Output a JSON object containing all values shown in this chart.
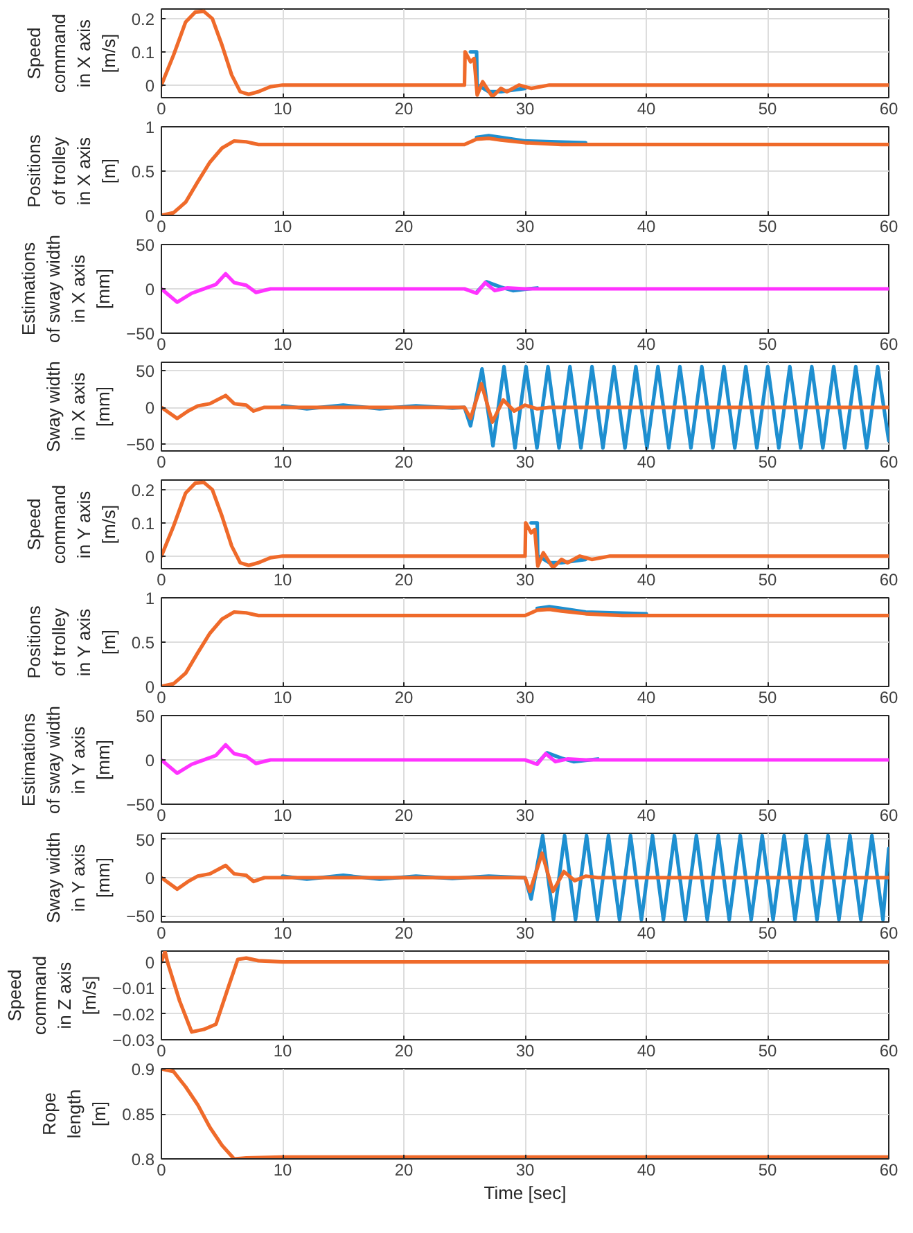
{
  "chart_data": [
    {
      "type": "line",
      "ylabel": "Speed\ncommand\nin X axis\n[m/s]",
      "xlim": [
        0,
        60
      ],
      "xticks": [
        0,
        10,
        20,
        30,
        40,
        50,
        60
      ],
      "ylim": [
        -0.038,
        0.229
      ],
      "yticks": [
        0,
        0.1,
        0.2
      ],
      "grid": true,
      "series": [
        {
          "color": "#1e8fd0",
          "x": [
            25.5,
            26,
            26.05,
            26.1,
            27,
            28,
            30
          ],
          "values": [
            0.1,
            0.1,
            -0.02,
            0,
            -0.02,
            -0.02,
            -0.01
          ]
        },
        {
          "color": "#ef6a2a",
          "x": [
            0,
            1,
            2,
            2.8,
            3.5,
            4.2,
            5,
            5.8,
            6.5,
            7.2,
            8,
            9,
            10,
            25,
            25.05,
            25.5,
            25.8,
            26.05,
            26.5,
            27.3,
            28,
            28.5,
            29.5,
            30.5,
            32,
            60
          ],
          "values": [
            0,
            0.09,
            0.19,
            0.22,
            0.222,
            0.2,
            0.12,
            0.03,
            -0.02,
            -0.028,
            -0.02,
            -0.005,
            0,
            0,
            0.1,
            0.07,
            0.08,
            -0.03,
            0.01,
            -0.035,
            -0.01,
            -0.02,
            0,
            -0.01,
            0,
            0
          ]
        }
      ]
    },
    {
      "type": "line",
      "ylabel": "Positions\nof trolley\nin X axis\n[m]",
      "xlim": [
        0,
        60
      ],
      "xticks": [
        0,
        10,
        20,
        30,
        40,
        50,
        60
      ],
      "ylim": [
        0,
        1
      ],
      "yticks": [
        0,
        0.5,
        1
      ],
      "grid": true,
      "series": [
        {
          "color": "#1e8fd0",
          "x": [
            26,
            27,
            28,
            30,
            35
          ],
          "values": [
            0.88,
            0.9,
            0.88,
            0.84,
            0.82
          ]
        },
        {
          "color": "#ef6a2a",
          "x": [
            0,
            1,
            2,
            3,
            4,
            5,
            6,
            7,
            8,
            25,
            26,
            27,
            28,
            30,
            33,
            60
          ],
          "values": [
            0,
            0.03,
            0.15,
            0.38,
            0.6,
            0.76,
            0.84,
            0.83,
            0.8,
            0.8,
            0.86,
            0.87,
            0.85,
            0.82,
            0.8,
            0.8
          ]
        }
      ]
    },
    {
      "type": "line",
      "ylabel": "Estimations\nof sway width\nin X axis\n[mm]",
      "xlim": [
        0,
        60
      ],
      "xticks": [
        0,
        10,
        20,
        30,
        40,
        50,
        60
      ],
      "ylim": [
        -50,
        50
      ],
      "yticks": [
        -50,
        0,
        50
      ],
      "grid": true,
      "series": [
        {
          "color": "#1e8fd0",
          "x": [
            26,
            26.8,
            28,
            29,
            31
          ],
          "values": [
            -4,
            8,
            2,
            -2,
            1
          ]
        },
        {
          "color": "#ff33ff",
          "x": [
            0,
            1.3,
            2.5,
            3.5,
            4.5,
            5.3,
            6,
            7,
            7.8,
            9,
            10,
            25,
            26,
            26.7,
            27.5,
            28.5,
            30,
            60
          ],
          "values": [
            0,
            -15,
            -5,
            0,
            5,
            17,
            7,
            4,
            -4,
            0,
            0,
            0,
            -5,
            7,
            -2,
            1,
            0,
            0
          ]
        }
      ]
    },
    {
      "type": "line",
      "ylabel": "Sway width\nin X axis\n[mm]",
      "xlim": [
        0,
        60
      ],
      "xticks": [
        0,
        10,
        20,
        30,
        40,
        50,
        60
      ],
      "ylim": [
        -59,
        61
      ],
      "yticks": [
        -50,
        0,
        50
      ],
      "grid": true,
      "series": [
        {
          "color": "#1e8fd0",
          "x": [
            10,
            12,
            15,
            18,
            21,
            24,
            25,
            25.5,
            26.45,
            27.35,
            28.26,
            29.17,
            30.08,
            30.98,
            31.89,
            32.8,
            33.7,
            34.61,
            35.52,
            36.42,
            37.33,
            38.24,
            39.14,
            40.05,
            40.96,
            41.86,
            42.77,
            43.68,
            44.58,
            45.49,
            46.4,
            47.3,
            48.21,
            49.12,
            50.02,
            50.93,
            51.84,
            52.74,
            53.65,
            54.56,
            55.46,
            56.37,
            57.28,
            58.18,
            59.09,
            60
          ],
          "values": [
            2,
            -2,
            3,
            -2,
            2,
            -1,
            0,
            -25,
            52,
            -52,
            55,
            -55,
            55,
            -55,
            55,
            -55,
            55,
            -55,
            55,
            -55,
            55,
            -55,
            55,
            -55,
            55,
            -55,
            55,
            -55,
            55,
            -55,
            55,
            -55,
            55,
            -55,
            55,
            -55,
            55,
            -55,
            55,
            -55,
            55,
            -55,
            55,
            -55,
            55,
            -45
          ]
        },
        {
          "color": "#ef6a2a",
          "x": [
            0,
            1.3,
            2.2,
            3,
            4,
            5.3,
            6,
            7,
            7.6,
            8.5,
            10,
            25,
            25.5,
            26.4,
            27.3,
            28.2,
            29.1,
            30,
            31,
            32,
            60
          ],
          "values": [
            0,
            -15,
            -5,
            2,
            5,
            16,
            5,
            3,
            -5,
            0,
            0,
            0,
            -15,
            32,
            -20,
            10,
            -5,
            3,
            -2,
            0,
            0
          ]
        }
      ]
    },
    {
      "type": "line",
      "ylabel": "Speed\ncommand\nin Y axis\n[m/s]",
      "xlim": [
        0,
        60
      ],
      "xticks": [
        0,
        10,
        20,
        30,
        40,
        50,
        60
      ],
      "ylim": [
        -0.038,
        0.229
      ],
      "yticks": [
        0,
        0.1,
        0.2
      ],
      "grid": true,
      "series": [
        {
          "color": "#1e8fd0",
          "x": [
            30.5,
            31,
            31.05,
            31.1,
            32,
            33,
            35
          ],
          "values": [
            0.1,
            0.1,
            -0.02,
            0,
            -0.02,
            -0.02,
            -0.01
          ]
        },
        {
          "color": "#ef6a2a",
          "x": [
            0,
            1,
            2,
            2.8,
            3.5,
            4.2,
            5,
            5.8,
            6.5,
            7.2,
            8,
            9,
            10,
            30,
            30.05,
            30.5,
            30.8,
            31.05,
            31.5,
            32.3,
            33,
            33.5,
            34.5,
            35.5,
            37,
            60
          ],
          "values": [
            0,
            0.09,
            0.19,
            0.22,
            0.222,
            0.2,
            0.12,
            0.03,
            -0.02,
            -0.028,
            -0.02,
            -0.005,
            0,
            0,
            0.1,
            0.07,
            0.08,
            -0.03,
            0.01,
            -0.035,
            -0.01,
            -0.02,
            0,
            -0.01,
            0,
            0
          ]
        }
      ]
    },
    {
      "type": "line",
      "ylabel": "Positions\nof trolley\nin Y axis\n[m]",
      "xlim": [
        0,
        60
      ],
      "xticks": [
        0,
        10,
        20,
        30,
        40,
        50,
        60
      ],
      "ylim": [
        0,
        1
      ],
      "yticks": [
        0,
        0.5,
        1
      ],
      "grid": true,
      "series": [
        {
          "color": "#1e8fd0",
          "x": [
            31,
            32,
            33,
            35,
            40
          ],
          "values": [
            0.88,
            0.9,
            0.88,
            0.84,
            0.82
          ]
        },
        {
          "color": "#ef6a2a",
          "x": [
            0,
            1,
            2,
            3,
            4,
            5,
            6,
            7,
            8,
            30,
            31,
            32,
            33,
            35,
            38,
            60
          ],
          "values": [
            0,
            0.03,
            0.15,
            0.38,
            0.6,
            0.76,
            0.84,
            0.83,
            0.8,
            0.8,
            0.86,
            0.87,
            0.85,
            0.82,
            0.8,
            0.8
          ]
        }
      ]
    },
    {
      "type": "line",
      "ylabel": "Estimations\nof sway width\nin Y axis\n[mm]",
      "xlim": [
        0,
        60
      ],
      "xticks": [
        0,
        10,
        20,
        30,
        40,
        50,
        60
      ],
      "ylim": [
        -50,
        50
      ],
      "yticks": [
        -50,
        0,
        50
      ],
      "grid": true,
      "series": [
        {
          "color": "#1e8fd0",
          "x": [
            31,
            31.8,
            33,
            34,
            36
          ],
          "values": [
            -4,
            8,
            2,
            -2,
            1
          ]
        },
        {
          "color": "#ff33ff",
          "x": [
            0,
            1.3,
            2.5,
            3.5,
            4.5,
            5.3,
            6,
            7,
            7.8,
            9,
            10,
            30,
            31,
            31.7,
            32.5,
            33.5,
            35,
            60
          ],
          "values": [
            0,
            -15,
            -5,
            0,
            5,
            17,
            7,
            4,
            -4,
            0,
            0,
            0,
            -5,
            7,
            -2,
            1,
            0,
            0
          ]
        }
      ]
    },
    {
      "type": "line",
      "ylabel": "Sway width\nin Y axis\n[mm]",
      "xlim": [
        0,
        60
      ],
      "xticks": [
        0,
        10,
        20,
        30,
        40,
        50,
        60
      ],
      "ylim": [
        -58,
        58
      ],
      "yticks": [
        -50,
        0,
        50
      ],
      "grid": true,
      "series": [
        {
          "color": "#1e8fd0",
          "x": [
            10,
            12,
            15,
            18,
            21,
            24,
            27,
            30,
            30.5,
            31.45,
            32.35,
            33.26,
            34.16,
            35.07,
            35.97,
            36.88,
            37.79,
            38.7,
            39.6,
            40.51,
            41.41,
            42.32,
            43.22,
            44.13,
            45.03,
            45.94,
            46.84,
            47.75,
            48.65,
            49.56,
            50.46,
            51.37,
            52.27,
            53.18,
            54.08,
            54.99,
            55.89,
            56.8,
            57.7,
            58.61,
            59.52,
            60
          ],
          "values": [
            2,
            -2,
            3,
            -2,
            2,
            -1,
            2,
            0,
            -28,
            55,
            -55,
            55,
            -55,
            55,
            -55,
            55,
            -55,
            55,
            -55,
            55,
            -55,
            55,
            -55,
            55,
            -55,
            55,
            -55,
            55,
            -55,
            55,
            -55,
            55,
            -55,
            55,
            -55,
            55,
            -55,
            55,
            -55,
            55,
            -55,
            38
          ]
        },
        {
          "color": "#ef6a2a",
          "x": [
            0,
            1.3,
            2.2,
            3,
            4,
            5.3,
            6,
            7,
            7.6,
            8.5,
            10,
            30,
            30.4,
            31.4,
            32.3,
            33.2,
            34.1,
            35,
            36,
            60
          ],
          "values": [
            0,
            -15,
            -5,
            2,
            5,
            16,
            5,
            3,
            -5,
            0,
            0,
            0,
            -18,
            32,
            -18,
            8,
            -4,
            2,
            0,
            0
          ]
        }
      ]
    },
    {
      "type": "line",
      "ylabel": "Speed\ncommand\nin Z axis\n[m/s]",
      "xlim": [
        0,
        60
      ],
      "xticks": [
        0,
        10,
        20,
        30,
        40,
        50,
        60
      ],
      "ylim": [
        -0.03,
        0.0042
      ],
      "yticks": [
        -0.03,
        -0.02,
        -0.01,
        0
      ],
      "grid": true,
      "series": [
        {
          "color": "#ef6a2a",
          "x": [
            0,
            0.3,
            0.5,
            1.5,
            2.5,
            3.5,
            4.5,
            5.5,
            6.3,
            7,
            8,
            10,
            60
          ],
          "values": [
            0,
            0.004,
            0,
            -0.015,
            -0.027,
            -0.026,
            -0.024,
            -0.01,
            0.001,
            0.0015,
            0.0005,
            0,
            0
          ]
        }
      ]
    },
    {
      "type": "line",
      "ylabel": "Rope\nlength\n[m]",
      "xlabel": "Time [sec]",
      "xlim": [
        0,
        60
      ],
      "xticks": [
        0,
        10,
        20,
        30,
        40,
        50,
        60
      ],
      "ylim": [
        0.8,
        0.9
      ],
      "yticks": [
        0.8,
        0.85,
        0.9
      ],
      "grid": true,
      "series": [
        {
          "color": "#ef6a2a",
          "x": [
            0,
            1,
            2,
            3,
            4,
            5,
            6,
            7,
            10,
            60
          ],
          "values": [
            0.9,
            0.897,
            0.88,
            0.86,
            0.835,
            0.815,
            0.8,
            0.801,
            0.802,
            0.802
          ]
        }
      ]
    }
  ]
}
